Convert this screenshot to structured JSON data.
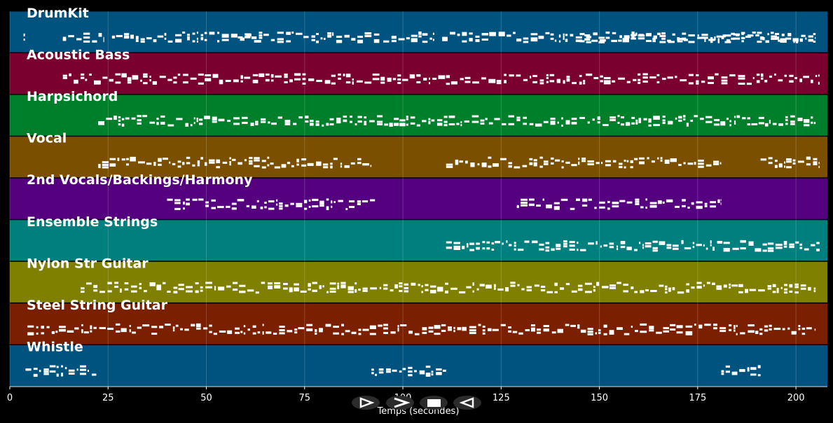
{
  "chart_data": {
    "type": "piano-roll",
    "xlabel": "Temps (secondes)",
    "xlim": [
      0,
      208
    ],
    "xticks": [
      0,
      25,
      50,
      75,
      100,
      125,
      150,
      175,
      200
    ],
    "grid": true,
    "tracks": [
      {
        "name": "DrumKit",
        "color": "#00537f",
        "segments": [
          [
            3.5,
            4.2
          ],
          [
            13.5,
            24
          ],
          [
            26,
            64
          ],
          [
            58,
            94
          ],
          [
            95,
            108
          ],
          [
            110,
            205
          ],
          [
            145,
            205
          ]
        ]
      },
      {
        "name": "Acoustic Bass",
        "color": "#7a002f",
        "segments": [
          [
            13.5,
            206
          ]
        ]
      },
      {
        "name": "Harpsichord",
        "color": "#007f2a",
        "segments": [
          [
            22.5,
            205
          ]
        ]
      },
      {
        "name": "Vocal",
        "color": "#7a5000",
        "segments": [
          [
            22.5,
            92
          ],
          [
            111,
            181
          ],
          [
            191,
            206
          ]
        ]
      },
      {
        "name": "2nd Vocals/Backings/Harmony",
        "color": "#55007f",
        "segments": [
          [
            40,
            93
          ],
          [
            129,
            181
          ]
        ]
      },
      {
        "name": "Ensemble Strings",
        "color": "#007f7f",
        "segments": [
          [
            111,
            206
          ]
        ]
      },
      {
        "name": "Nylon Str Guitar",
        "color": "#7f7f00",
        "segments": [
          [
            18,
            205
          ]
        ]
      },
      {
        "name": "Steel String Guitar",
        "color": "#7a2000",
        "segments": [
          [
            4.5,
            205
          ]
        ]
      },
      {
        "name": "Whistle",
        "color": "#00537f",
        "segments": [
          [
            4,
            22
          ],
          [
            92,
            111
          ],
          [
            181,
            191
          ]
        ]
      }
    ]
  },
  "controls": {
    "play_icon": "play-icon",
    "forward_icon": "fast-forward-icon",
    "stop_icon": "stop-icon",
    "back_icon": "rewind-icon"
  }
}
